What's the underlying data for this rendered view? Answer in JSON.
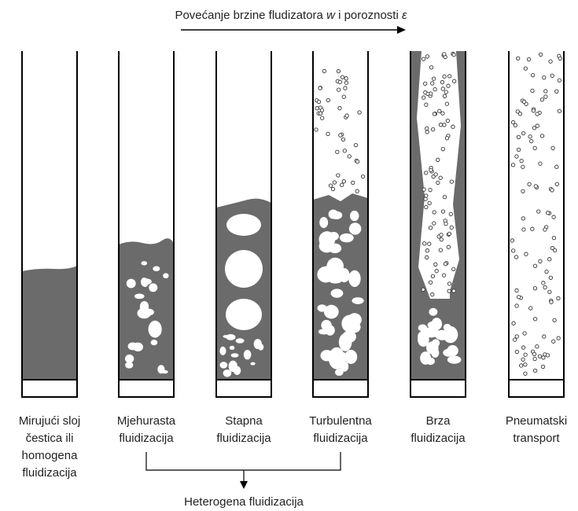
{
  "header": {
    "title_parts": [
      "Povećanje brzine fludizatora ",
      "w",
      " i poroznosti ",
      "ε"
    ]
  },
  "columns": [
    {
      "label": [
        "Mirujući sloj",
        "čestica ili",
        "homogena",
        "fluidizacija"
      ]
    },
    {
      "label": [
        "Mjehurasta",
        "fluidizacija"
      ]
    },
    {
      "label": [
        "Stapna",
        "fluidizacija"
      ]
    },
    {
      "label": [
        "Turbulentna",
        "fluidizacija"
      ]
    },
    {
      "label": [
        "Brza",
        "fluidizacija"
      ]
    },
    {
      "label": [
        "Pneumatski",
        "transport"
      ]
    }
  ],
  "group": {
    "label": "Heterogena fluidizacija"
  }
}
